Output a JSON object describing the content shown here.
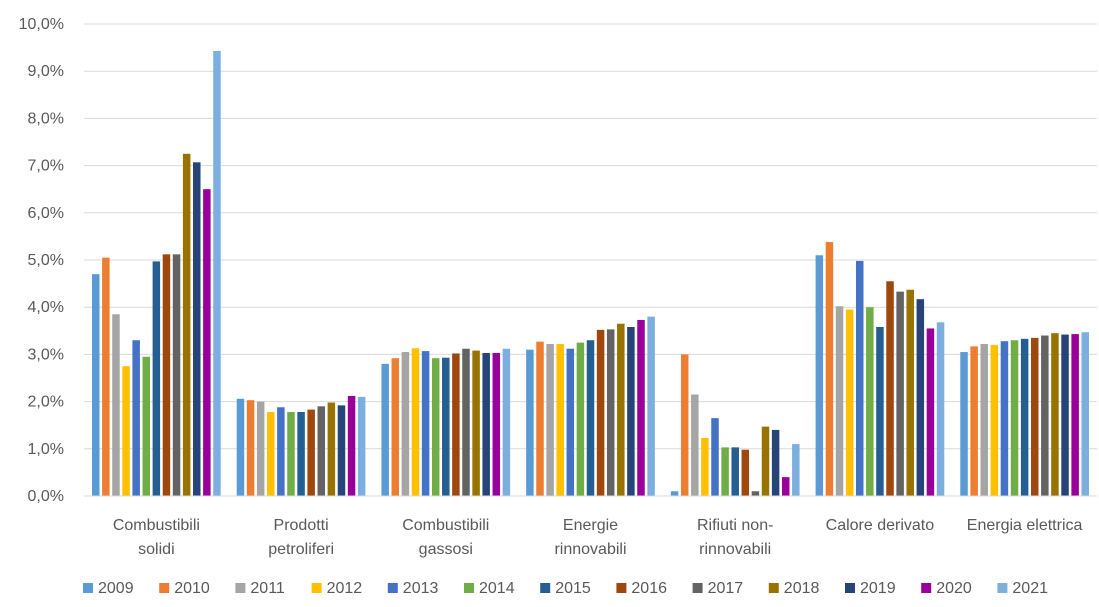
{
  "chart_data": {
    "type": "bar",
    "ylim": [
      0,
      10
    ],
    "y_tick_labels": [
      "0,0%",
      "1,0%",
      "2,0%",
      "3,0%",
      "4,0%",
      "5,0%",
      "6,0%",
      "7,0%",
      "8,0%",
      "9,0%",
      "10,0%"
    ],
    "categories": [
      [
        "Combustibili",
        "solidi"
      ],
      [
        "Prodotti",
        "petroliferi"
      ],
      [
        "Combustibili",
        "gassosi"
      ],
      [
        "Energie",
        "rinnovabili"
      ],
      [
        "Rifiuti non-",
        "rinnovabili"
      ],
      [
        "Calore derivato"
      ],
      [
        "Energia elettrica"
      ]
    ],
    "grid": true,
    "legend_position": "bottom",
    "series": [
      {
        "name": "2009",
        "color": "#5B9BD5",
        "values": [
          4.7,
          2.06,
          2.8,
          3.1,
          0.1,
          5.1,
          3.05
        ]
      },
      {
        "name": "2010",
        "color": "#ED7D31",
        "values": [
          5.05,
          2.03,
          2.92,
          3.27,
          3.0,
          5.38,
          3.17
        ]
      },
      {
        "name": "2011",
        "color": "#A5A5A5",
        "values": [
          3.85,
          2.0,
          3.05,
          3.22,
          2.15,
          4.02,
          3.22
        ]
      },
      {
        "name": "2012",
        "color": "#FFC000",
        "values": [
          2.75,
          1.78,
          3.13,
          3.22,
          1.23,
          3.95,
          3.2
        ]
      },
      {
        "name": "2013",
        "color": "#4472C4",
        "values": [
          3.3,
          1.88,
          3.07,
          3.12,
          1.65,
          4.98,
          3.28
        ]
      },
      {
        "name": "2014",
        "color": "#70AD47",
        "values": [
          2.95,
          1.78,
          2.92,
          3.25,
          1.03,
          4.0,
          3.3
        ]
      },
      {
        "name": "2015",
        "color": "#255E91",
        "values": [
          4.97,
          1.78,
          2.93,
          3.3,
          1.03,
          3.58,
          3.33
        ]
      },
      {
        "name": "2016",
        "color": "#9E480E",
        "values": [
          5.12,
          1.83,
          3.02,
          3.52,
          0.98,
          4.55,
          3.35
        ]
      },
      {
        "name": "2017",
        "color": "#636363",
        "values": [
          5.12,
          1.9,
          3.12,
          3.53,
          0.1,
          4.33,
          3.4
        ]
      },
      {
        "name": "2018",
        "color": "#997300",
        "values": [
          7.25,
          1.98,
          3.08,
          3.65,
          1.47,
          4.37,
          3.45
        ]
      },
      {
        "name": "2019",
        "color": "#264478",
        "values": [
          7.07,
          1.92,
          3.03,
          3.58,
          1.4,
          4.17,
          3.42
        ]
      },
      {
        "name": "2020",
        "color": "#990099",
        "values": [
          6.5,
          2.12,
          3.03,
          3.73,
          0.4,
          3.55,
          3.43
        ]
      },
      {
        "name": "2021",
        "color": "#7CAFDD",
        "values": [
          9.43,
          2.1,
          3.12,
          3.8,
          1.1,
          3.68,
          3.47
        ]
      }
    ]
  }
}
